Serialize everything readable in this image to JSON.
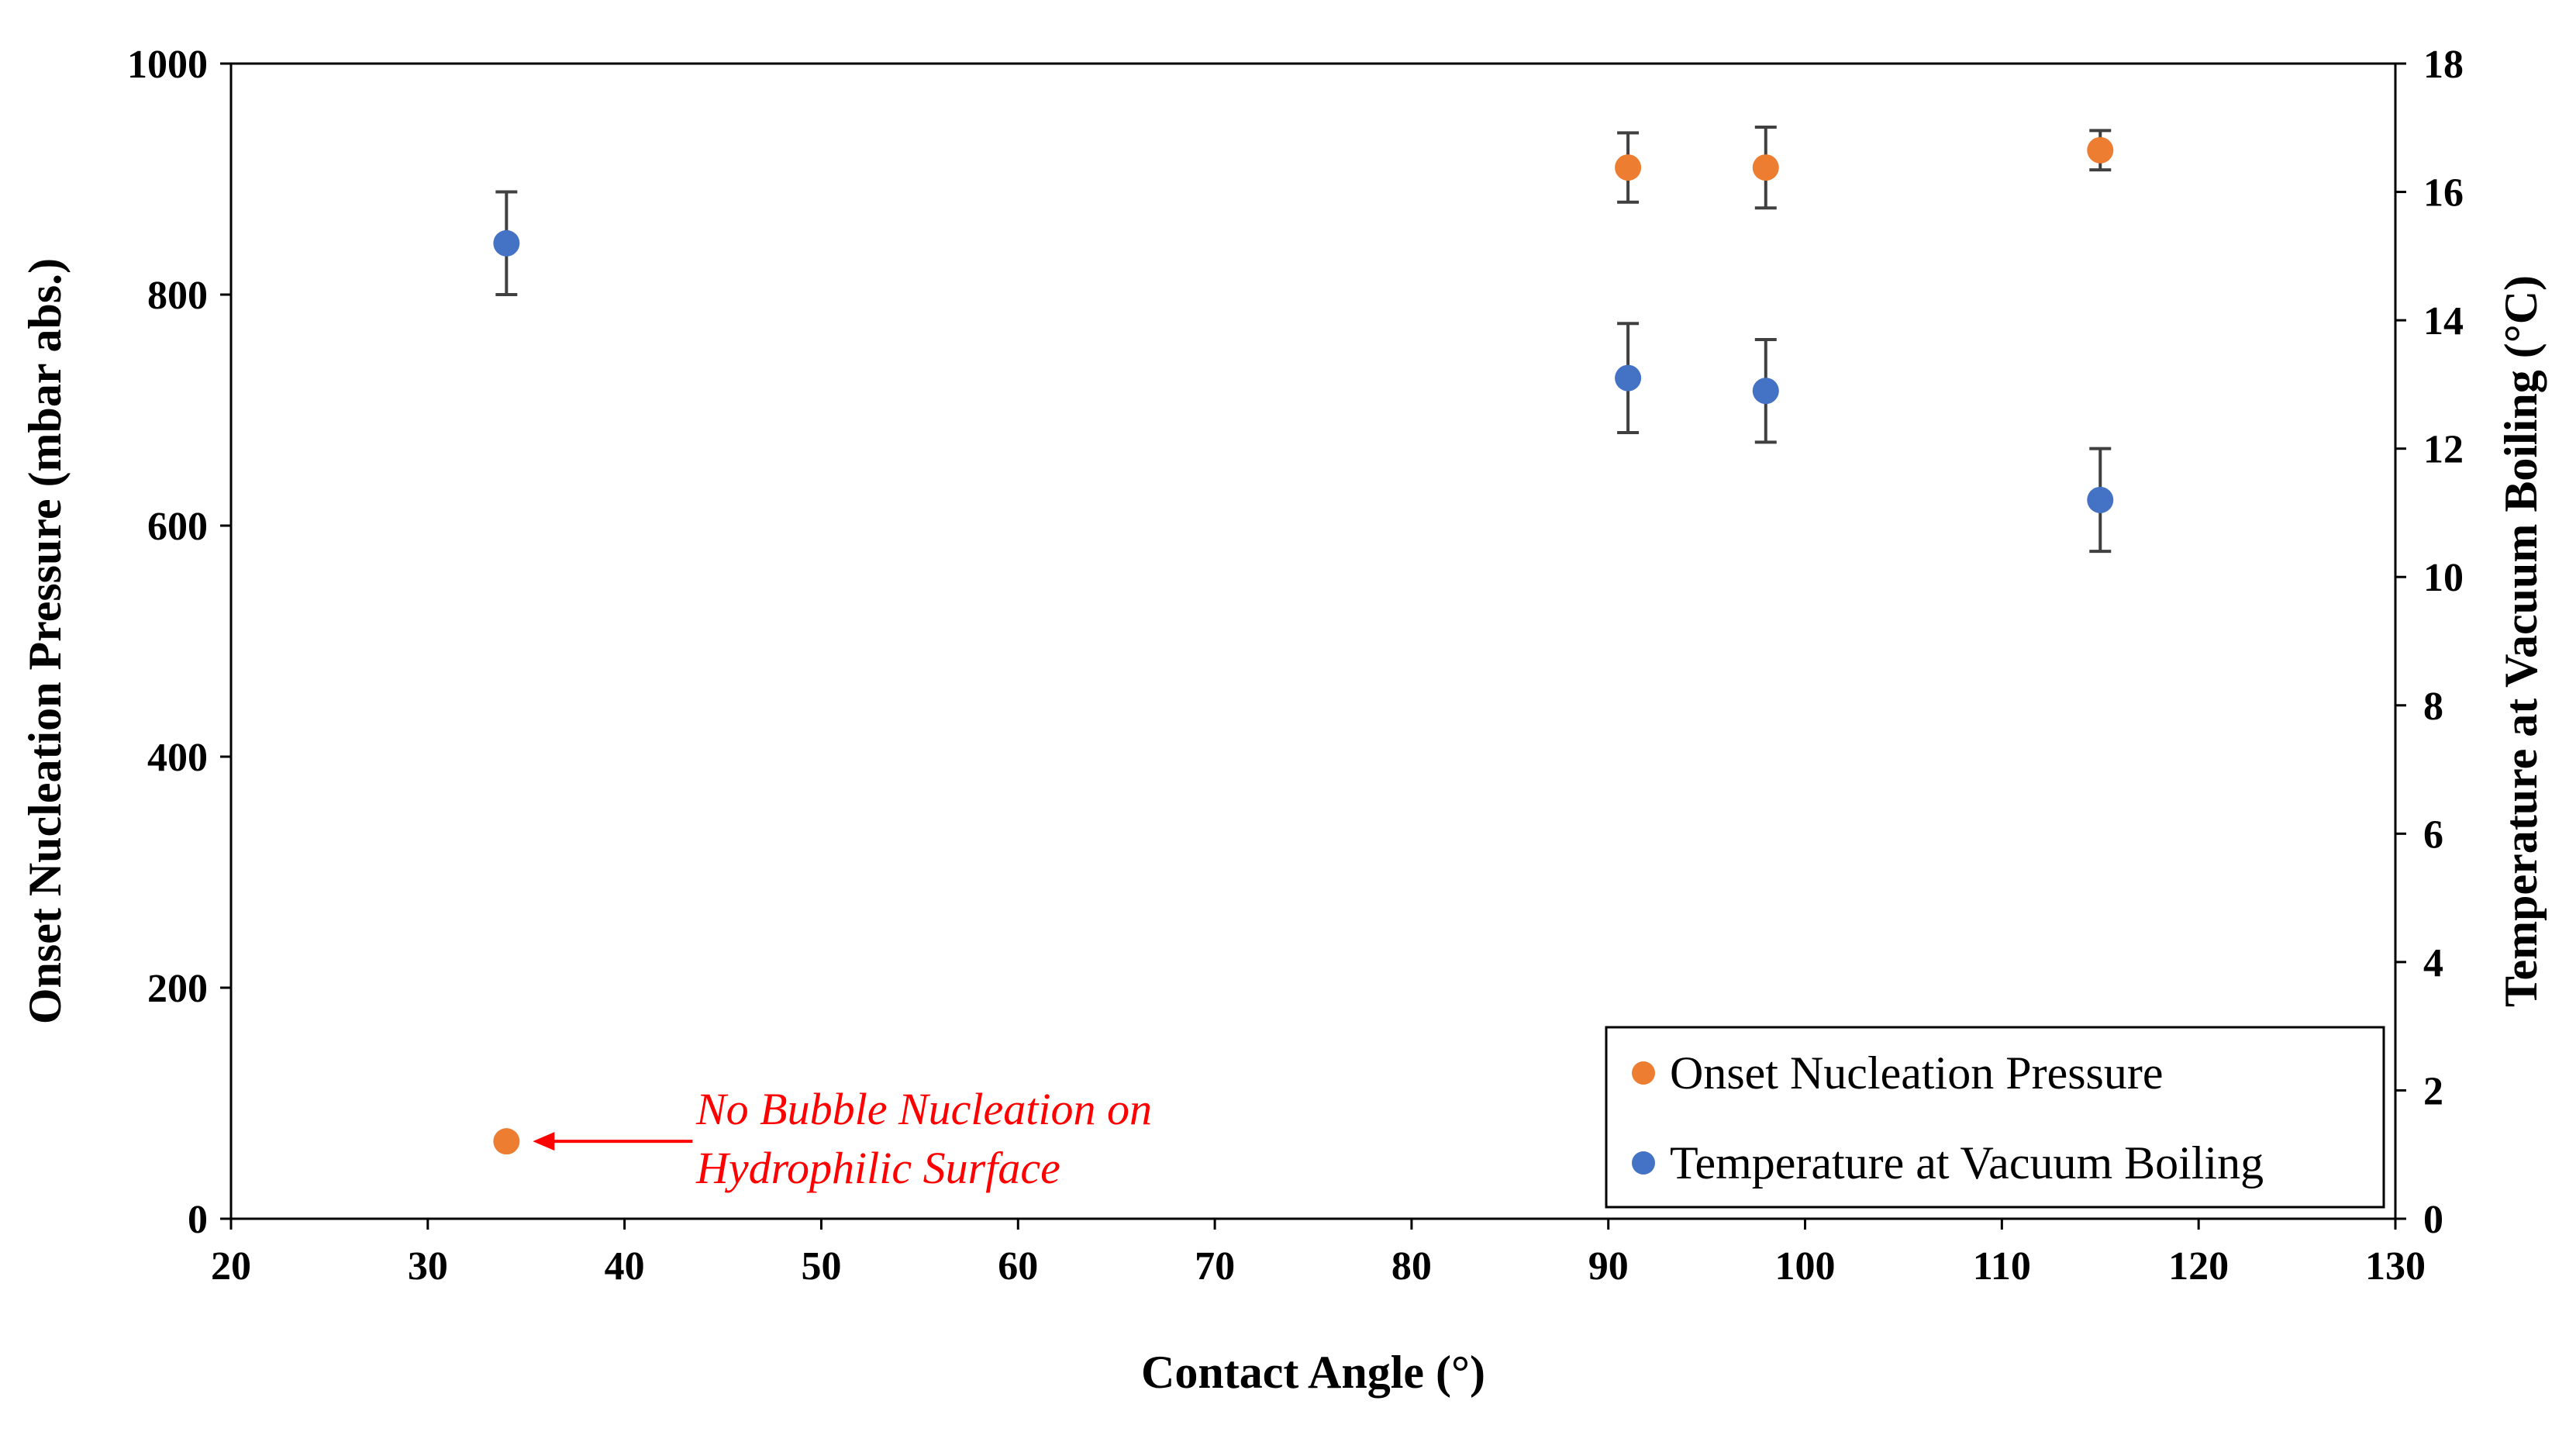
{
  "chart_data": {
    "type": "scatter",
    "xlabel": "Contact Angle (°)",
    "ylabel_left": "Onset Nucleation Pressure (mbar abs.)",
    "ylabel_right": "Temperature at Vacuum Boiling  (°C)",
    "xlim": [
      20,
      130
    ],
    "ylim_left": [
      0,
      1000
    ],
    "ylim_right": [
      0,
      18
    ],
    "x_ticks": [
      "20",
      "30",
      "40",
      "50",
      "60",
      "70",
      "80",
      "90",
      "100",
      "110",
      "120",
      "130"
    ],
    "y_left_ticks": [
      "0",
      "200",
      "400",
      "600",
      "800",
      "1000"
    ],
    "y_right_ticks": [
      "0",
      "2",
      "4",
      "6",
      "8",
      "10",
      "12",
      "14",
      "16",
      "18"
    ],
    "grid": false,
    "legend_position": "bottom-right",
    "series": [
      {
        "name": "Onset Nucleation Pressure",
        "axis": "left",
        "color": "#ED7D31",
        "points": [
          {
            "x": 34,
            "y": 67,
            "err": 0
          },
          {
            "x": 91,
            "y": 910,
            "err": 30
          },
          {
            "x": 98,
            "y": 910,
            "err": 35
          },
          {
            "x": 115,
            "y": 925,
            "err": 17
          }
        ]
      },
      {
        "name": "Temperature at Vacuum Boiling",
        "axis": "right",
        "color": "#4472C4",
        "points": [
          {
            "x": 34,
            "y": 15.2,
            "err": 0.8
          },
          {
            "x": 91,
            "y": 13.1,
            "err": 0.85
          },
          {
            "x": 98,
            "y": 12.9,
            "err": 0.8
          },
          {
            "x": 115,
            "y": 11.2,
            "err": 0.8
          }
        ]
      }
    ],
    "annotation": {
      "lines": [
        "No Bubble Nucleation on",
        "Hydrophilic Surface"
      ],
      "color": "#FF0000",
      "target": {
        "x": 34,
        "y": 67
      }
    }
  }
}
